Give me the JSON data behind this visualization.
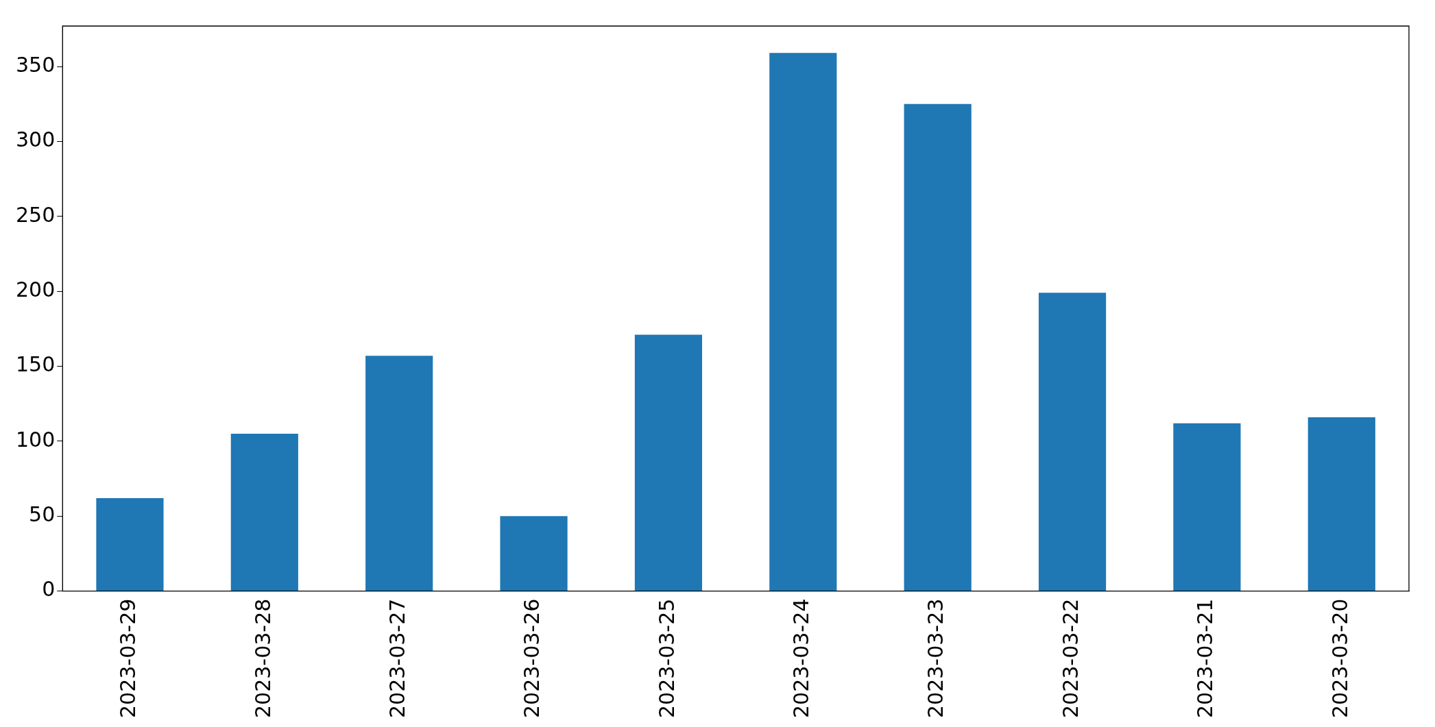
{
  "chart_data": {
    "type": "bar",
    "categories": [
      "2023-03-29",
      "2023-03-28",
      "2023-03-27",
      "2023-03-26",
      "2023-03-25",
      "2023-03-24",
      "2023-03-23",
      "2023-03-22",
      "2023-03-21",
      "2023-03-20"
    ],
    "values": [
      62,
      105,
      157,
      50,
      171,
      359,
      325,
      199,
      112,
      116
    ],
    "color": "#1f77b4",
    "ylim": [
      0,
      377
    ],
    "yticks": [
      0,
      50,
      100,
      150,
      200,
      250,
      300,
      350
    ],
    "grid": false,
    "legend": false
  }
}
